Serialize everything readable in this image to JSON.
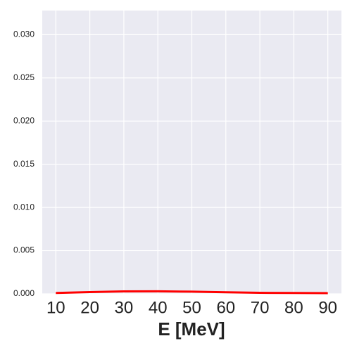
{
  "chart_data": {
    "type": "line",
    "x_label": "E [MeV]",
    "x": [
      10,
      20,
      30,
      40,
      50,
      60,
      70,
      80,
      90
    ],
    "series": [
      {
        "color": "#ff0000",
        "values": [
          0.0001,
          0.0002,
          0.00028,
          0.0003,
          0.00025,
          0.00018,
          0.00012,
          0.0001,
          8e-05
        ]
      }
    ],
    "xlim": [
      6,
      94
    ],
    "xticks": [
      10,
      20,
      30,
      40,
      50,
      60,
      70,
      80,
      90
    ],
    "ylim": [
      0,
      0.0328
    ],
    "yticks": [
      {
        "value": 0,
        "label": "0.000"
      },
      {
        "value": 0.005,
        "label": "0.005"
      },
      {
        "value": 0.01,
        "label": "0.010"
      },
      {
        "value": 0.015,
        "label": "0.015"
      },
      {
        "value": 0.02,
        "label": "0.020"
      },
      {
        "value": 0.025,
        "label": "0.025"
      },
      {
        "value": 0.03,
        "label": "0.030"
      }
    ],
    "grid": true,
    "background": "#eaeaf2"
  }
}
